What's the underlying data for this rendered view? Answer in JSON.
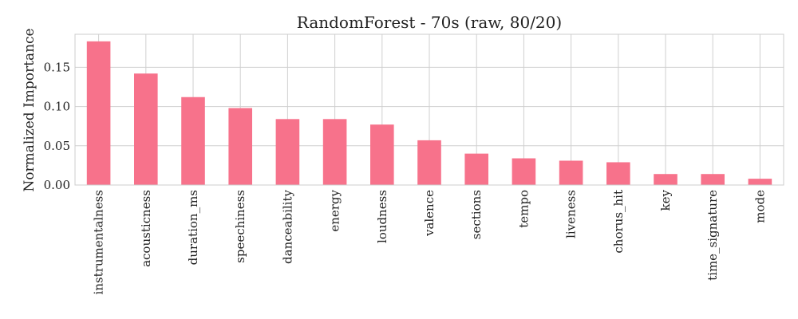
{
  "chart_data": {
    "type": "bar",
    "title": "RandomForest - 70s (raw, 80/20)",
    "xlabel": "",
    "ylabel": "Normalized Importance",
    "categories": [
      "instrumentalness",
      "acousticness",
      "duration_ms",
      "speechiness",
      "danceability",
      "energy",
      "loudness",
      "valence",
      "sections",
      "tempo",
      "liveness",
      "chorus_hit",
      "key",
      "time_signature",
      "mode"
    ],
    "values": [
      0.183,
      0.142,
      0.112,
      0.098,
      0.084,
      0.084,
      0.077,
      0.057,
      0.04,
      0.034,
      0.031,
      0.029,
      0.014,
      0.014,
      0.008
    ],
    "ylim": [
      0,
      0.192
    ],
    "yticks": [
      "0.00",
      "0.05",
      "0.10",
      "0.15"
    ],
    "grid": true,
    "bar_color": "#f7728b"
  }
}
